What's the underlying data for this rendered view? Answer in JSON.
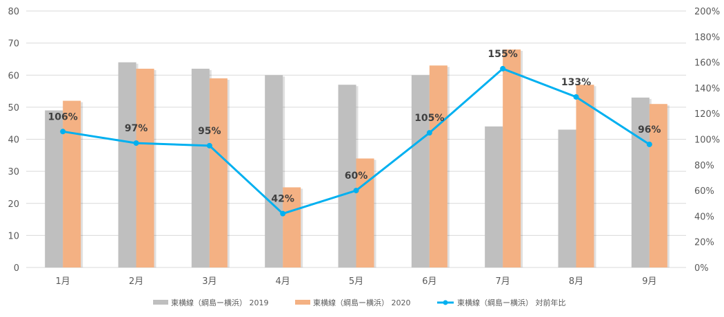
{
  "chart_data": {
    "type": "bar",
    "title": "",
    "categories": [
      "1月",
      "2月",
      "3月",
      "4月",
      "5月",
      "6月",
      "7月",
      "8月",
      "9月"
    ],
    "series": [
      {
        "name": "東横線（綱島ー横浜） 2019",
        "type": "bar",
        "axis": "left",
        "color": "#bfbfbf",
        "values": [
          49,
          64,
          62,
          60,
          57,
          60,
          44,
          43,
          53
        ]
      },
      {
        "name": "東横線（綱島ー横浜） 2020",
        "type": "bar",
        "axis": "left",
        "color": "#f4b183",
        "values": [
          52,
          62,
          59,
          25,
          34,
          63,
          68,
          57,
          51
        ]
      },
      {
        "name": "東横線（綱島ー横浜） 対前年比",
        "type": "line",
        "axis": "right",
        "color": "#00b0f0",
        "values": [
          106,
          97,
          95,
          42,
          60,
          105,
          155,
          133,
          96
        ],
        "labels": [
          "106%",
          "97%",
          "95%",
          "42%",
          "60%",
          "105%",
          "155%",
          "133%",
          "96%"
        ]
      }
    ],
    "ylim": [
      0,
      80
    ],
    "yticks": [
      "0",
      "10",
      "20",
      "30",
      "40",
      "50",
      "60",
      "70",
      "80"
    ],
    "y2lim": [
      0,
      200
    ],
    "y2ticks": [
      "0%",
      "20%",
      "40%",
      "60%",
      "80%",
      "100%",
      "120%",
      "140%",
      "160%",
      "180%",
      "200%"
    ],
    "grid": true,
    "legend": "bottom"
  }
}
